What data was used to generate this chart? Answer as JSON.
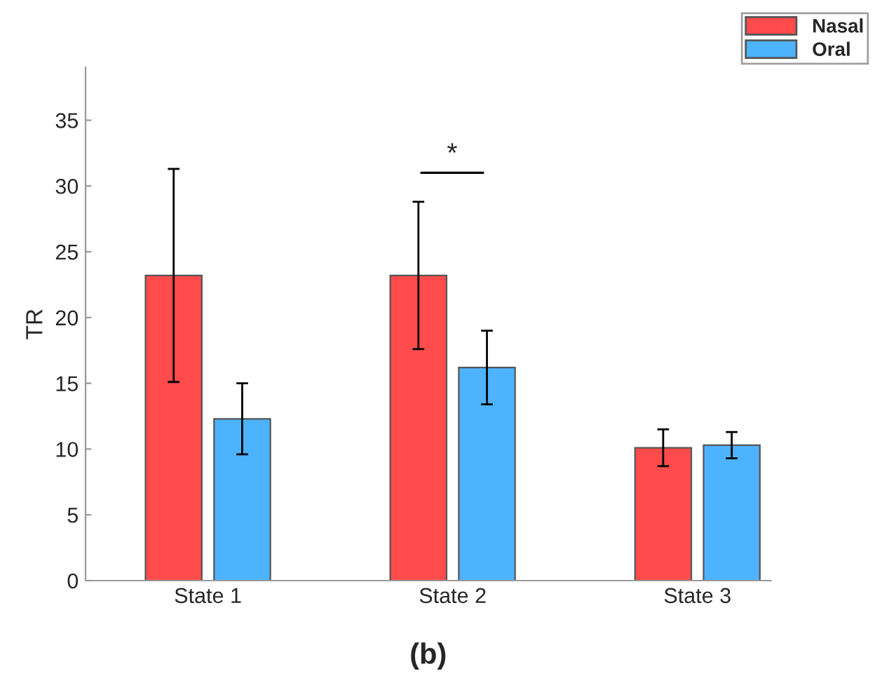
{
  "chart_data": {
    "type": "bar",
    "xlabel": "(b)",
    "ylabel": "TR",
    "categories": [
      "State 1",
      "State 2",
      "State 3"
    ],
    "series": [
      {
        "name": "Nasal",
        "color": "#ff4b4b",
        "values": [
          23.2,
          23.2,
          10.1
        ],
        "errors": [
          8.1,
          5.6,
          1.4
        ]
      },
      {
        "name": "Oral",
        "color": "#4db3ff",
        "values": [
          12.3,
          16.2,
          10.3
        ],
        "errors": [
          2.7,
          2.8,
          1.0
        ]
      }
    ],
    "ylim": [
      0,
      39
    ],
    "yticks": [
      0,
      5,
      10,
      15,
      20,
      25,
      30,
      35
    ],
    "annotations": [
      "*"
    ],
    "grid": false,
    "legend": "top right"
  }
}
